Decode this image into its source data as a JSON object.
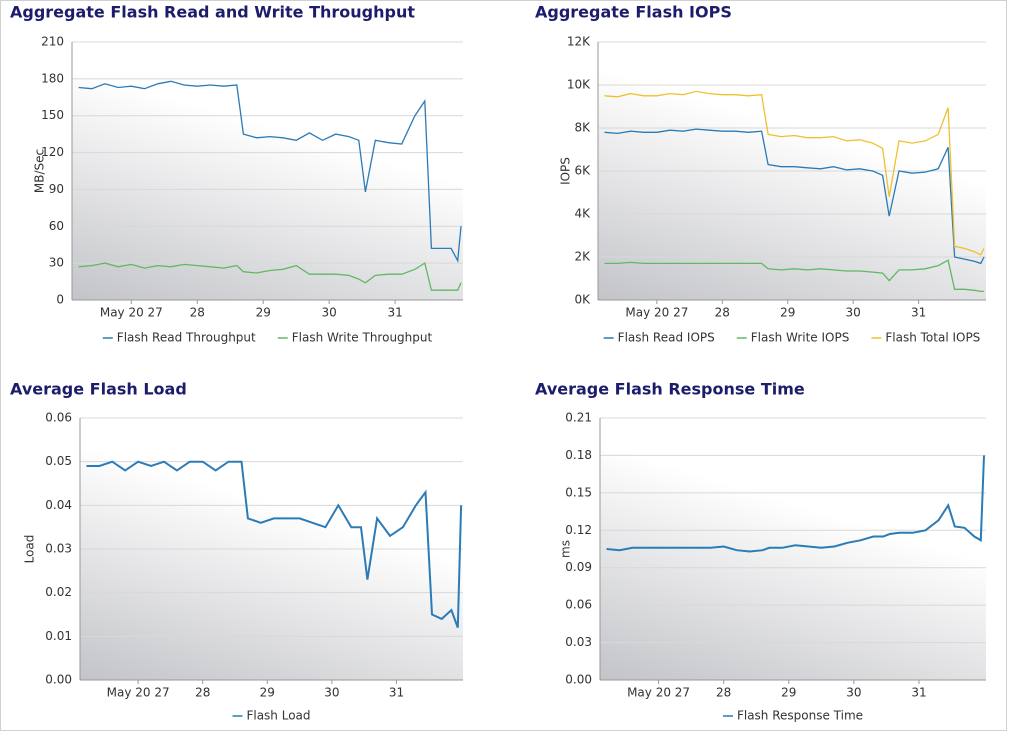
{
  "chart_data": [
    {
      "type": "line",
      "title": "Aggregate Flash Read and Write Throughput",
      "y_label": "MB/Sec",
      "x": [
        26.2,
        26.4,
        26.6,
        26.8,
        27.0,
        27.2,
        27.4,
        27.6,
        27.8,
        28.0,
        28.2,
        28.4,
        28.6,
        28.7,
        28.9,
        29.1,
        29.3,
        29.5,
        29.7,
        29.9,
        30.1,
        30.3,
        30.45,
        30.55,
        30.7,
        30.9,
        31.1,
        31.3,
        31.45,
        31.55,
        31.7,
        31.85,
        31.95,
        32.0
      ],
      "xlim": [
        26.1,
        32.03
      ],
      "xticks": [
        {
          "value": 27,
          "label": "May 20 27"
        },
        28,
        29,
        30,
        31
      ],
      "ylim": [
        0,
        210
      ],
      "yticks": [
        0,
        30,
        60,
        90,
        120,
        150,
        180,
        210
      ],
      "grid": true,
      "legend": "bottom",
      "series": [
        {
          "name": "Flash Read Throughput",
          "color": "#2b7bb6",
          "values": [
            173,
            172,
            176,
            173,
            174,
            172,
            176,
            178,
            175,
            174,
            175,
            174,
            175,
            135,
            132,
            133,
            132,
            130,
            136,
            130,
            135,
            133,
            130,
            88,
            130,
            128,
            127,
            150,
            162,
            42,
            42,
            42,
            32,
            60
          ]
        },
        {
          "name": "Flash Write Throughput",
          "color": "#62b865",
          "values": [
            27,
            28,
            30,
            27,
            29,
            26,
            28,
            27,
            29,
            28,
            27,
            26,
            28,
            23,
            22,
            24,
            25,
            28,
            21,
            21,
            21,
            20,
            17,
            14,
            20,
            21,
            21,
            25,
            30,
            8,
            8,
            8,
            8,
            14
          ]
        }
      ]
    },
    {
      "type": "line",
      "title": "Aggregate Flash IOPS",
      "y_label": "IOPS",
      "x": [
        26.2,
        26.4,
        26.6,
        26.8,
        27.0,
        27.2,
        27.4,
        27.6,
        27.8,
        28.0,
        28.2,
        28.4,
        28.6,
        28.7,
        28.9,
        29.1,
        29.3,
        29.5,
        29.7,
        29.9,
        30.1,
        30.3,
        30.45,
        30.55,
        30.7,
        30.9,
        31.1,
        31.3,
        31.45,
        31.55,
        31.7,
        31.85,
        31.95,
        32.0
      ],
      "xlim": [
        26.1,
        32.03
      ],
      "xticks": [
        {
          "value": 27,
          "label": "May 20 27"
        },
        28,
        29,
        30,
        31
      ],
      "ylim": [
        0,
        12000
      ],
      "yticks": [
        {
          "value": 0,
          "label": "0K"
        },
        {
          "value": 2000,
          "label": "2K"
        },
        {
          "value": 4000,
          "label": "4K"
        },
        {
          "value": 6000,
          "label": "6K"
        },
        {
          "value": 8000,
          "label": "8K"
        },
        {
          "value": 10000,
          "label": "10K"
        },
        {
          "value": 12000,
          "label": "12K"
        }
      ],
      "grid": true,
      "legend": "bottom",
      "series": [
        {
          "name": "Flash Read IOPS",
          "color": "#2b7bb6",
          "values": [
            7800,
            7750,
            7850,
            7800,
            7800,
            7900,
            7850,
            7950,
            7900,
            7850,
            7850,
            7800,
            7850,
            6300,
            6200,
            6200,
            6150,
            6100,
            6200,
            6050,
            6100,
            6000,
            5800,
            3900,
            6000,
            5900,
            5950,
            6100,
            7100,
            2000,
            1900,
            1800,
            1700,
            2000
          ]
        },
        {
          "name": "Flash Write IOPS",
          "color": "#62b865",
          "values": [
            1700,
            1700,
            1750,
            1700,
            1700,
            1700,
            1700,
            1700,
            1700,
            1700,
            1700,
            1700,
            1700,
            1450,
            1400,
            1450,
            1400,
            1450,
            1400,
            1350,
            1350,
            1300,
            1250,
            900,
            1400,
            1400,
            1450,
            1600,
            1850,
            500,
            500,
            450,
            400,
            400
          ]
        },
        {
          "name": "Flash Total IOPS",
          "color": "#f0c030",
          "values": [
            9500,
            9450,
            9600,
            9500,
            9500,
            9600,
            9550,
            9700,
            9600,
            9550,
            9550,
            9500,
            9550,
            7700,
            7600,
            7650,
            7550,
            7550,
            7600,
            7400,
            7450,
            7300,
            7050,
            4800,
            7400,
            7300,
            7400,
            7700,
            8950,
            2500,
            2400,
            2250,
            2100,
            2400
          ]
        }
      ]
    },
    {
      "type": "line",
      "title": "Average Flash Load",
      "y_label": "Load",
      "x": [
        26.2,
        26.4,
        26.6,
        26.8,
        27.0,
        27.2,
        27.4,
        27.6,
        27.8,
        28.0,
        28.2,
        28.4,
        28.6,
        28.7,
        28.9,
        29.1,
        29.3,
        29.5,
        29.7,
        29.9,
        30.1,
        30.3,
        30.45,
        30.55,
        30.7,
        30.9,
        31.1,
        31.3,
        31.45,
        31.55,
        31.7,
        31.85,
        31.95,
        32.0
      ],
      "xlim": [
        26.1,
        32.03
      ],
      "xticks": [
        {
          "value": 27,
          "label": "May 20 27"
        },
        28,
        29,
        30,
        31
      ],
      "ylim": [
        0,
        0.06
      ],
      "yticks": [
        {
          "value": 0,
          "label": "0.00"
        },
        0.01,
        0.02,
        0.03,
        0.04,
        0.05,
        0.06
      ],
      "grid": true,
      "legend": "bottom",
      "series": [
        {
          "name": "Flash Load",
          "color": "#2b7bb6",
          "values": [
            0.049,
            0.049,
            0.05,
            0.048,
            0.05,
            0.049,
            0.05,
            0.048,
            0.05,
            0.05,
            0.048,
            0.05,
            0.05,
            0.037,
            0.036,
            0.037,
            0.037,
            0.037,
            0.036,
            0.035,
            0.04,
            0.035,
            0.035,
            0.023,
            0.037,
            0.033,
            0.035,
            0.04,
            0.043,
            0.015,
            0.014,
            0.016,
            0.012,
            0.04
          ]
        }
      ]
    },
    {
      "type": "line",
      "title": "Average Flash Response Time",
      "y_label": "ms",
      "x": [
        26.2,
        26.4,
        26.6,
        26.8,
        27.0,
        27.2,
        27.4,
        27.6,
        27.8,
        28.0,
        28.2,
        28.4,
        28.6,
        28.7,
        28.9,
        29.1,
        29.3,
        29.5,
        29.7,
        29.9,
        30.1,
        30.3,
        30.45,
        30.55,
        30.7,
        30.9,
        31.1,
        31.3,
        31.45,
        31.55,
        31.7,
        31.85,
        31.95,
        32.0
      ],
      "xlim": [
        26.1,
        32.03
      ],
      "xticks": [
        {
          "value": 27,
          "label": "May 20 27"
        },
        28,
        29,
        30,
        31
      ],
      "ylim": [
        0,
        0.21
      ],
      "yticks": [
        {
          "value": 0,
          "label": "0.00"
        },
        0.03,
        0.06,
        0.09,
        0.12,
        0.15,
        0.18,
        0.21
      ],
      "grid": true,
      "legend": "bottom",
      "series": [
        {
          "name": "Flash Response Time",
          "color": "#2b7bb6",
          "values": [
            0.105,
            0.104,
            0.106,
            0.106,
            0.106,
            0.106,
            0.106,
            0.106,
            0.106,
            0.107,
            0.104,
            0.103,
            0.104,
            0.106,
            0.106,
            0.108,
            0.107,
            0.106,
            0.107,
            0.11,
            0.112,
            0.115,
            0.115,
            0.117,
            0.118,
            0.118,
            0.12,
            0.128,
            0.14,
            0.123,
            0.122,
            0.115,
            0.112,
            0.18
          ]
        }
      ]
    }
  ]
}
